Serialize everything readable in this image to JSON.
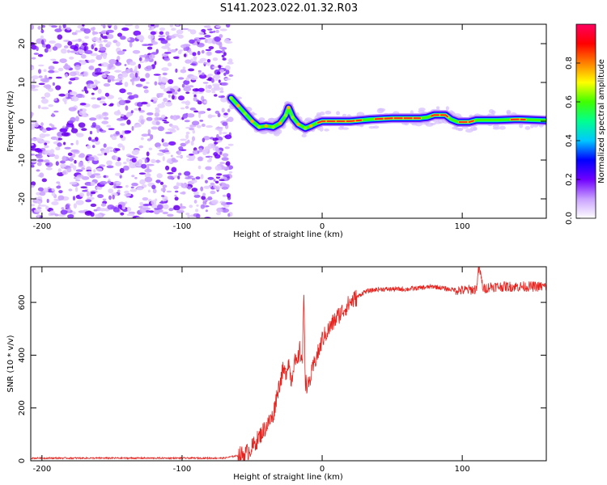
{
  "title": "S141.2023.022.01.32.R03",
  "chart_data": [
    {
      "type": "heatmap",
      "xlabel": "Height of straight line (km)",
      "ylabel": "Frequency (Hz)",
      "xlim": [
        -208,
        160
      ],
      "ylim": [
        -25,
        25
      ],
      "xticks": [
        -200,
        -100,
        0,
        100
      ],
      "yticks": [
        -20,
        -10,
        0,
        10,
        20
      ],
      "colorbar": {
        "label": "Normalized spectral amplitude",
        "range": [
          0,
          1
        ],
        "ticks": [
          "0.0",
          "0.2",
          "0.4",
          "0.6",
          "0.8"
        ],
        "colors": [
          "#ffffff",
          "#c9a0ff",
          "#7000ff",
          "#0000ff",
          "#00c8ff",
          "#00ff90",
          "#40ff00",
          "#ffff00",
          "#ff8000",
          "#ff0000",
          "#ff0060"
        ]
      },
      "noise_region_x": [
        -208,
        -65
      ],
      "ridge": [
        {
          "x": -65,
          "y": 6.0
        },
        {
          "x": -60,
          "y": 4.0
        },
        {
          "x": -55,
          "y": 2.0
        },
        {
          "x": -50,
          "y": 0.0
        },
        {
          "x": -45,
          "y": -1.5
        },
        {
          "x": -40,
          "y": -1.2
        },
        {
          "x": -35,
          "y": -1.5
        },
        {
          "x": -30,
          "y": -0.5
        },
        {
          "x": -26,
          "y": 1.5
        },
        {
          "x": -24,
          "y": 3.5
        },
        {
          "x": -21,
          "y": 1.0
        },
        {
          "x": -17,
          "y": -0.8
        },
        {
          "x": -12,
          "y": -1.8
        },
        {
          "x": -8,
          "y": -1.2
        },
        {
          "x": -4,
          "y": -0.5
        },
        {
          "x": 0,
          "y": 0.0
        },
        {
          "x": 10,
          "y": 0.0
        },
        {
          "x": 20,
          "y": 0.0
        },
        {
          "x": 35,
          "y": 0.5
        },
        {
          "x": 50,
          "y": 0.8
        },
        {
          "x": 70,
          "y": 0.8
        },
        {
          "x": 75,
          "y": 1.0
        },
        {
          "x": 80,
          "y": 1.6
        },
        {
          "x": 88,
          "y": 1.6
        },
        {
          "x": 92,
          "y": 0.5
        },
        {
          "x": 97,
          "y": -0.2
        },
        {
          "x": 105,
          "y": -0.2
        },
        {
          "x": 110,
          "y": 0.3
        },
        {
          "x": 125,
          "y": 0.3
        },
        {
          "x": 140,
          "y": 0.5
        },
        {
          "x": 160,
          "y": 0.2
        }
      ]
    },
    {
      "type": "line",
      "xlabel": "Height of straight line (km)",
      "ylabel": "SNR (10 * v/v)",
      "xlim": [
        -208,
        160
      ],
      "ylim": [
        0,
        735
      ],
      "xticks": [
        -200,
        -100,
        0,
        100
      ],
      "yticks": [
        0,
        200,
        400,
        600
      ],
      "color": "#e8231e",
      "series": [
        {
          "x": [
            -208,
            -150,
            -100,
            -70,
            -55,
            -50,
            -45,
            -40,
            -35,
            -32,
            -30,
            -28,
            -26,
            -24,
            -22,
            -20,
            -18,
            -16,
            -14,
            -13,
            -12,
            -10,
            -8,
            -5,
            -2,
            0,
            5,
            10,
            15,
            20,
            25,
            30,
            35,
            40,
            50,
            60,
            70,
            80,
            90,
            100,
            110,
            112,
            115,
            120,
            130,
            140,
            150,
            160
          ],
          "y": [
            10,
            10,
            10,
            10,
            25,
            50,
            90,
            130,
            170,
            260,
            300,
            340,
            330,
            380,
            300,
            380,
            360,
            420,
            380,
            640,
            300,
            280,
            320,
            380,
            420,
            460,
            500,
            540,
            570,
            600,
            620,
            640,
            645,
            650,
            650,
            650,
            655,
            660,
            650,
            645,
            650,
            735,
            650,
            660,
            660,
            660,
            660,
            660
          ]
        }
      ]
    }
  ]
}
